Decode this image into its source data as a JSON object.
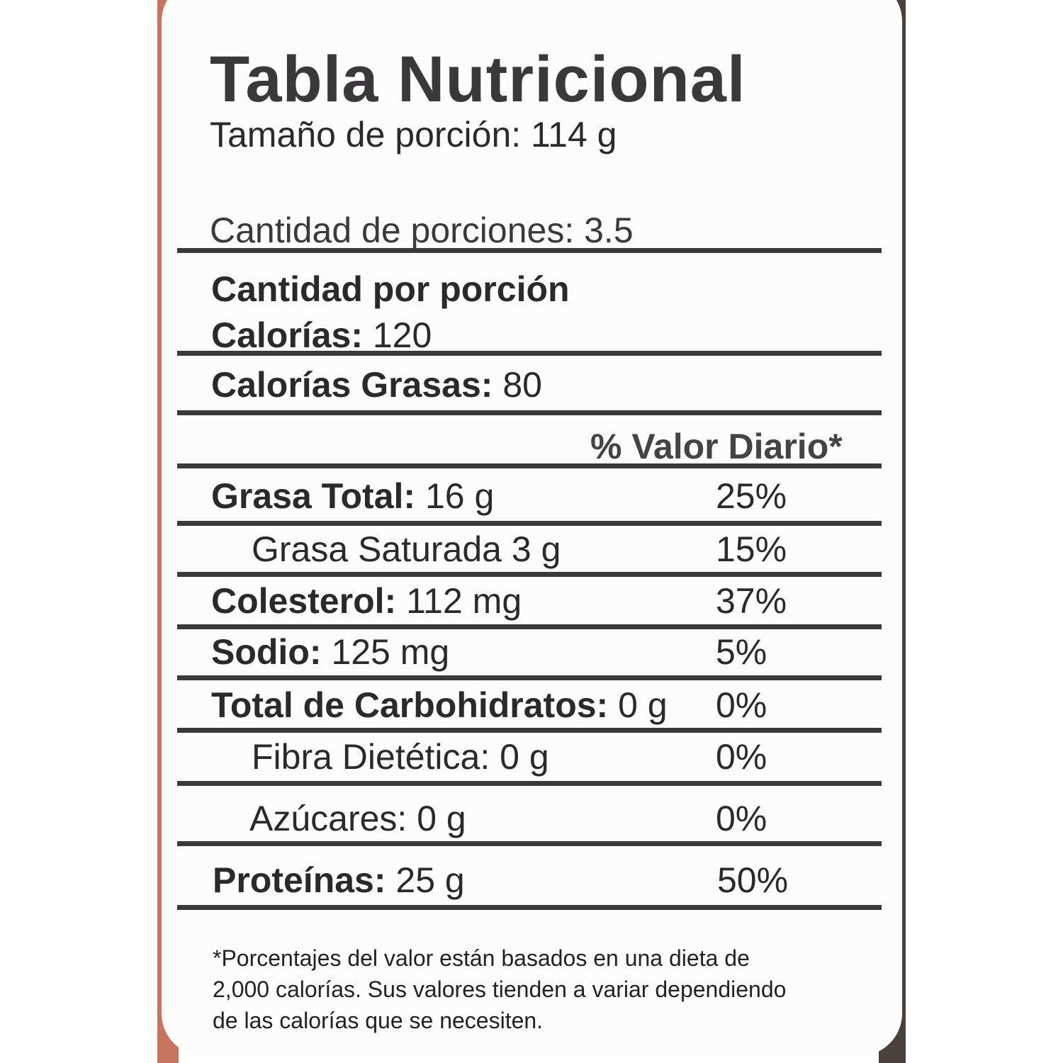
{
  "title": "Tabla Nutricional",
  "serving_size": "Tamaño de porción: 114 g",
  "servings": "Cantidad de porciones: 3.5",
  "amount_per_serving": "Cantidad por porción",
  "calories": {
    "label": "Calorías:",
    "value": "120"
  },
  "fat_calories": {
    "label": "Calorías Grasas:",
    "value": "80"
  },
  "daily_value_header": "% Valor Diario*",
  "nutrients": [
    {
      "label": "Grasa Total:",
      "value": "16 g",
      "dv": "25%"
    },
    {
      "label": "Grasa Saturada 3 g",
      "value": "",
      "dv": "15%"
    },
    {
      "label": "Colesterol:",
      "value": "112 mg",
      "dv": "37%"
    },
    {
      "label": "Sodio:",
      "value": "125 mg",
      "dv": "5%"
    },
    {
      "label": "Total de Carbohidratos:",
      "value": "0 g",
      "dv": "0%"
    },
    {
      "label": "Fibra Dietética: 0 g",
      "value": "",
      "dv": "0%"
    },
    {
      "label": "Azúcares: 0 g",
      "value": "",
      "dv": "0%"
    },
    {
      "label": "Proteínas:",
      "value": "25 g",
      "dv": "50%"
    }
  ],
  "footnote": [
    "*Porcentajes del valor están basados en una dieta de",
    "2,000 calorías. Sus valores tienden a variar dependiendo",
    "de las calorías que se necesiten."
  ]
}
